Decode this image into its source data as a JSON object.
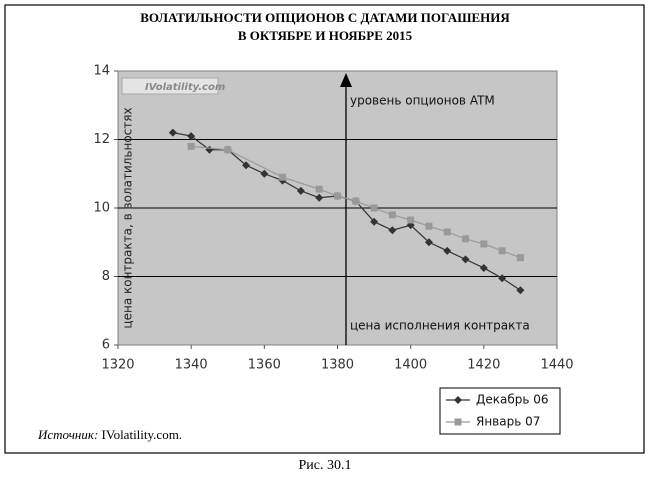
{
  "chart_data": {
    "type": "line",
    "title": [
      "ВОЛАТИЛЬНОСТИ ОПЦИОНОВ С ДАТАМИ ПОГАШЕНИЯ",
      "В ОКТЯБРЕ И НОЯБРЕ 2015"
    ],
    "y_label": "цена контракта, в волатильностях",
    "watermark": "IVolatility.com",
    "annotations": [
      "уровень опционов ATM",
      "цена исполнения контракта"
    ],
    "xlim": [
      1320,
      1440
    ],
    "xticks": [
      1320,
      1340,
      1360,
      1380,
      1400,
      1420,
      1440
    ],
    "ylim": [
      6,
      14
    ],
    "yticks": [
      6,
      8,
      10,
      12,
      14
    ],
    "grid": true,
    "legend": "bottom-right",
    "series": [
      {
        "name": "Декабрь 06",
        "color": "#333333",
        "marker": "diamond",
        "x": [
          1335,
          1340,
          1345,
          1350,
          1355,
          1360,
          1365,
          1370,
          1375,
          1380,
          1385,
          1390,
          1395,
          1400,
          1405,
          1410,
          1415,
          1420,
          1425,
          1430
        ],
        "values": [
          12.2,
          12.1,
          11.7,
          11.7,
          11.25,
          11.0,
          10.8,
          10.5,
          10.3,
          10.35,
          10.2,
          9.6,
          9.35,
          9.5,
          9.0,
          8.75,
          8.5,
          8.25,
          7.95,
          7.6
        ]
      },
      {
        "name": "Январь 07",
        "color": "#999999",
        "marker": "square",
        "x": [
          1340,
          1350,
          1365,
          1375,
          1380,
          1385,
          1390,
          1395,
          1400,
          1405,
          1410,
          1415,
          1420,
          1425,
          1430
        ],
        "values": [
          11.8,
          11.7,
          10.9,
          10.55,
          10.35,
          10.2,
          10.0,
          9.8,
          9.65,
          9.47,
          9.3,
          9.1,
          8.95,
          8.75,
          8.55
        ]
      }
    ],
    "source_label": "Источник:",
    "source": "IVolatility.com.",
    "caption": "Рис. 30.1"
  }
}
